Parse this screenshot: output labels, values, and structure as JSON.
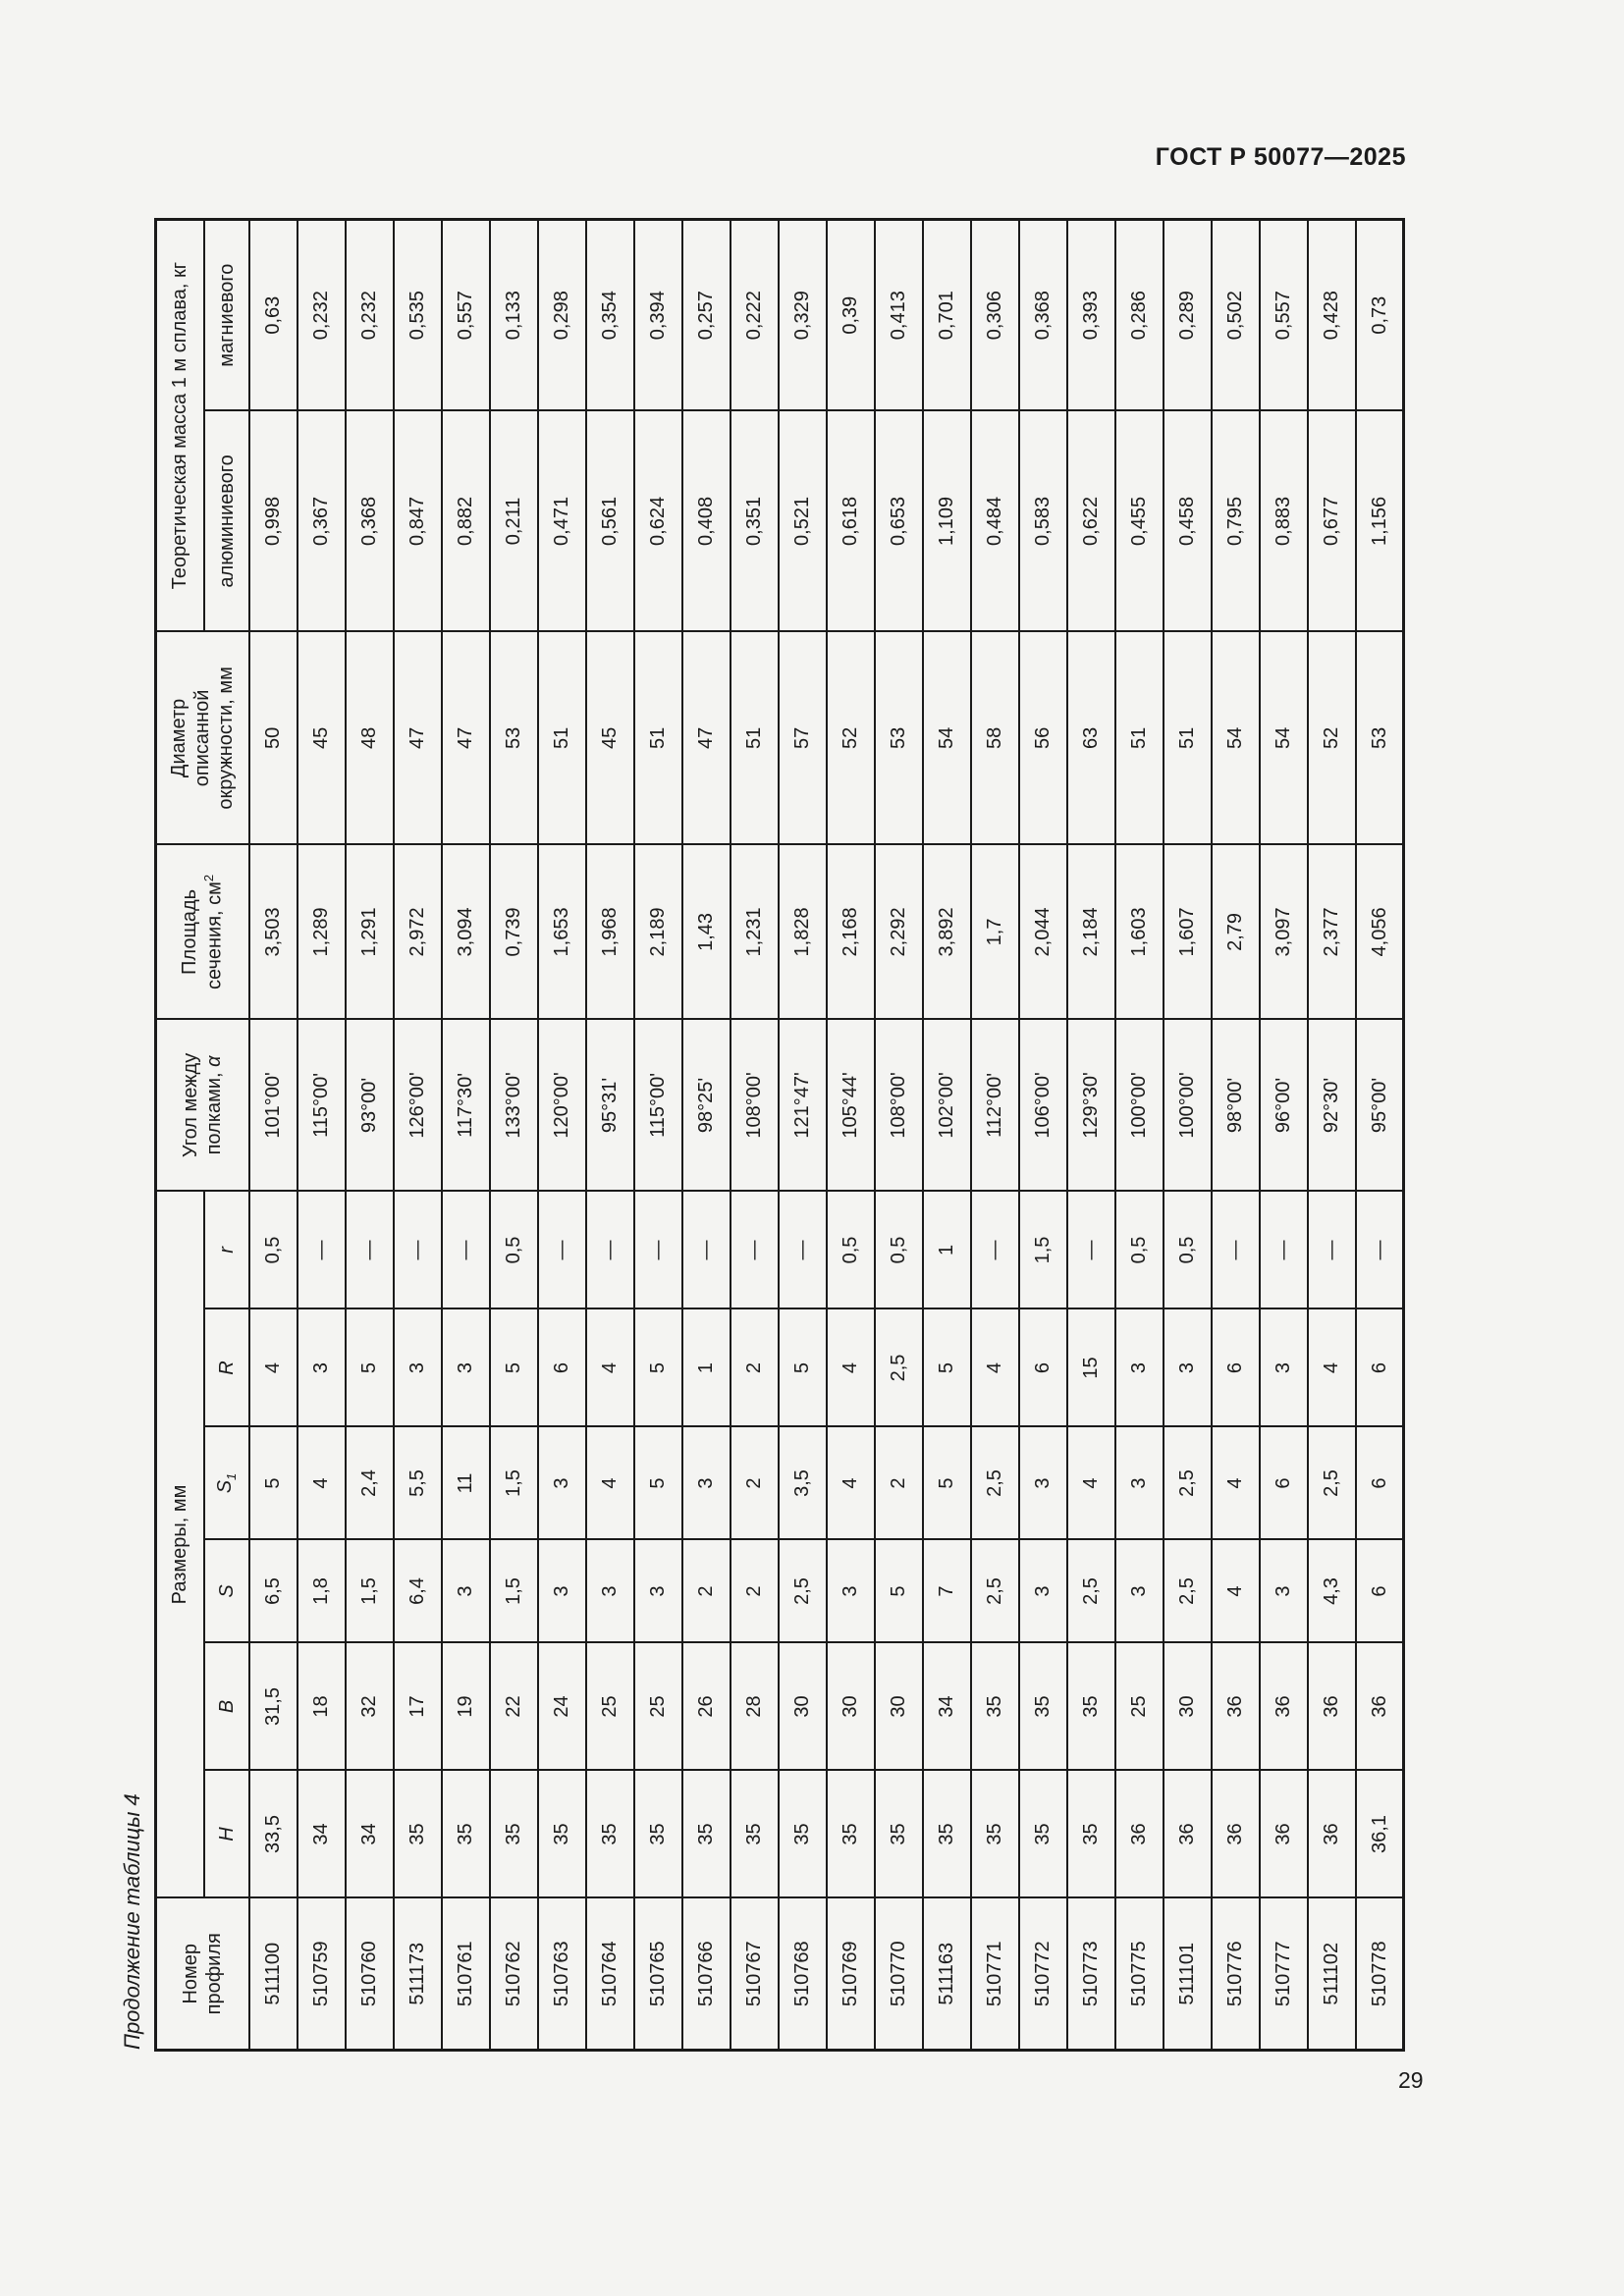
{
  "page": {
    "doc_code": "ГОСТ Р 50077—2025",
    "page_number": "29",
    "table_caption": "Продолжение таблицы 4"
  },
  "table": {
    "col_keys": [
      "num",
      "H",
      "B",
      "S",
      "S1",
      "R",
      "r",
      "angle",
      "area",
      "diameter",
      "mass_aluminum",
      "mass_magnesium"
    ],
    "headers": {
      "profile": "Номер профиля",
      "dimensions": "Размеры, мм",
      "dim_h": "H",
      "dim_b": "B",
      "dim_s": "S",
      "dim_s1_base": "S",
      "dim_s1_sub": "1",
      "dim_r_big": "R",
      "dim_r_small": "r",
      "angle_label": "Угол между полками,",
      "angle_sym": "α",
      "area_label": "Площадь сечения, см",
      "area_sup": "2",
      "diameter": "Диаметр описанной окружности, мм",
      "mass": "Теоретическая масса 1 м сплава, кг",
      "mass_al": "алюминиевого",
      "mass_mg": "магниевого"
    },
    "rows": [
      [
        "511100",
        "33,5",
        "31,5",
        "6,5",
        "5",
        "4",
        "0,5",
        "101°00'",
        "3,503",
        "50",
        "0,998",
        "0,63"
      ],
      [
        "510759",
        "34",
        "18",
        "1,8",
        "4",
        "3",
        "—",
        "115°00'",
        "1,289",
        "45",
        "0,367",
        "0,232"
      ],
      [
        "510760",
        "34",
        "32",
        "1,5",
        "2,4",
        "5",
        "—",
        "93°00'",
        "1,291",
        "48",
        "0,368",
        "0,232"
      ],
      [
        "511173",
        "35",
        "17",
        "6,4",
        "5,5",
        "3",
        "—",
        "126°00'",
        "2,972",
        "47",
        "0,847",
        "0,535"
      ],
      [
        "510761",
        "35",
        "19",
        "3",
        "11",
        "3",
        "—",
        "117°30'",
        "3,094",
        "47",
        "0,882",
        "0,557"
      ],
      [
        "510762",
        "35",
        "22",
        "1,5",
        "1,5",
        "5",
        "0,5",
        "133°00'",
        "0,739",
        "53",
        "0,211",
        "0,133"
      ],
      [
        "510763",
        "35",
        "24",
        "3",
        "3",
        "6",
        "—",
        "120°00'",
        "1,653",
        "51",
        "0,471",
        "0,298"
      ],
      [
        "510764",
        "35",
        "25",
        "3",
        "4",
        "4",
        "—",
        "95°31'",
        "1,968",
        "45",
        "0,561",
        "0,354"
      ],
      [
        "510765",
        "35",
        "25",
        "3",
        "5",
        "5",
        "—",
        "115°00'",
        "2,189",
        "51",
        "0,624",
        "0,394"
      ],
      [
        "510766",
        "35",
        "26",
        "2",
        "3",
        "1",
        "—",
        "98°25'",
        "1,43",
        "47",
        "0,408",
        "0,257"
      ],
      [
        "510767",
        "35",
        "28",
        "2",
        "2",
        "2",
        "—",
        "108°00'",
        "1,231",
        "51",
        "0,351",
        "0,222"
      ],
      [
        "510768",
        "35",
        "30",
        "2,5",
        "3,5",
        "5",
        "—",
        "121°47'",
        "1,828",
        "57",
        "0,521",
        "0,329"
      ],
      [
        "510769",
        "35",
        "30",
        "3",
        "4",
        "4",
        "0,5",
        "105°44'",
        "2,168",
        "52",
        "0,618",
        "0,39"
      ],
      [
        "510770",
        "35",
        "30",
        "5",
        "2",
        "2,5",
        "0,5",
        "108°00'",
        "2,292",
        "53",
        "0,653",
        "0,413"
      ],
      [
        "511163",
        "35",
        "34",
        "7",
        "5",
        "5",
        "1",
        "102°00'",
        "3,892",
        "54",
        "1,109",
        "0,701"
      ],
      [
        "510771",
        "35",
        "35",
        "2,5",
        "2,5",
        "4",
        "—",
        "112°00'",
        "1,7",
        "58",
        "0,484",
        "0,306"
      ],
      [
        "510772",
        "35",
        "35",
        "3",
        "3",
        "6",
        "1,5",
        "106°00'",
        "2,044",
        "56",
        "0,583",
        "0,368"
      ],
      [
        "510773",
        "35",
        "35",
        "2,5",
        "4",
        "15",
        "—",
        "129°30'",
        "2,184",
        "63",
        "0,622",
        "0,393"
      ],
      [
        "510775",
        "36",
        "25",
        "3",
        "3",
        "3",
        "0,5",
        "100°00'",
        "1,603",
        "51",
        "0,455",
        "0,286"
      ],
      [
        "511101",
        "36",
        "30",
        "2,5",
        "2,5",
        "3",
        "0,5",
        "100°00'",
        "1,607",
        "51",
        "0,458",
        "0,289"
      ],
      [
        "510776",
        "36",
        "36",
        "4",
        "4",
        "6",
        "—",
        "98°00'",
        "2,79",
        "54",
        "0,795",
        "0,502"
      ],
      [
        "510777",
        "36",
        "36",
        "3",
        "6",
        "3",
        "—",
        "96°00'",
        "3,097",
        "54",
        "0,883",
        "0,557"
      ],
      [
        "511102",
        "36",
        "36",
        "4,3",
        "2,5",
        "4",
        "—",
        "92°30'",
        "2,377",
        "52",
        "0,677",
        "0,428"
      ],
      [
        "510778",
        "36,1",
        "36",
        "6",
        "6",
        "6",
        "—",
        "95°00'",
        "4,056",
        "53",
        "1,156",
        "0,73"
      ]
    ]
  }
}
